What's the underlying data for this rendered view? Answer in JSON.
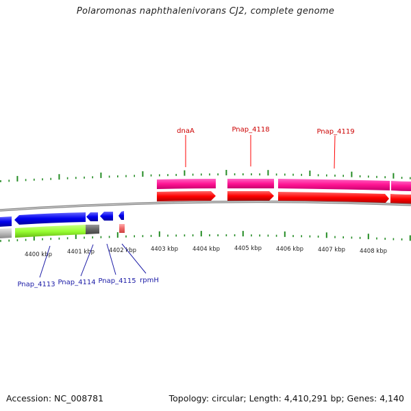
{
  "title": "Polaromonas naphthalenivorans CJ2, complete genome",
  "accession": "Accession: NC_008781",
  "summary": "Topology: circular; Length: 4,410,291 bp; Genes: 4,140",
  "colors": {
    "cds_forward": "#ff0000",
    "cds_reverse": "#0000ee",
    "gene_pink": "#ff1493",
    "gene_green": "#99ff33",
    "gene_grey": "#bbbbbb",
    "tick_green": "#228b22",
    "backbone": "#888888"
  },
  "scale_labels": [
    {
      "text": "4400 kbp"
    },
    {
      "text": "4401 kbp"
    },
    {
      "text": "4402 kbp"
    },
    {
      "text": "4403 kbp"
    },
    {
      "text": "4404 kbp"
    },
    {
      "text": "4405 kbp"
    },
    {
      "text": "4406 kbp"
    },
    {
      "text": "4407 kbp"
    },
    {
      "text": "4408 kbp"
    }
  ],
  "top_genes": [
    {
      "label": "dnaA"
    },
    {
      "label": "Pnap_4118"
    },
    {
      "label": "Pnap_4119"
    }
  ],
  "bottom_genes": [
    {
      "label": "Pnap_4113"
    },
    {
      "label": "Pnap_4114"
    },
    {
      "label": "Pnap_4115"
    },
    {
      "label": "rpmH"
    }
  ]
}
